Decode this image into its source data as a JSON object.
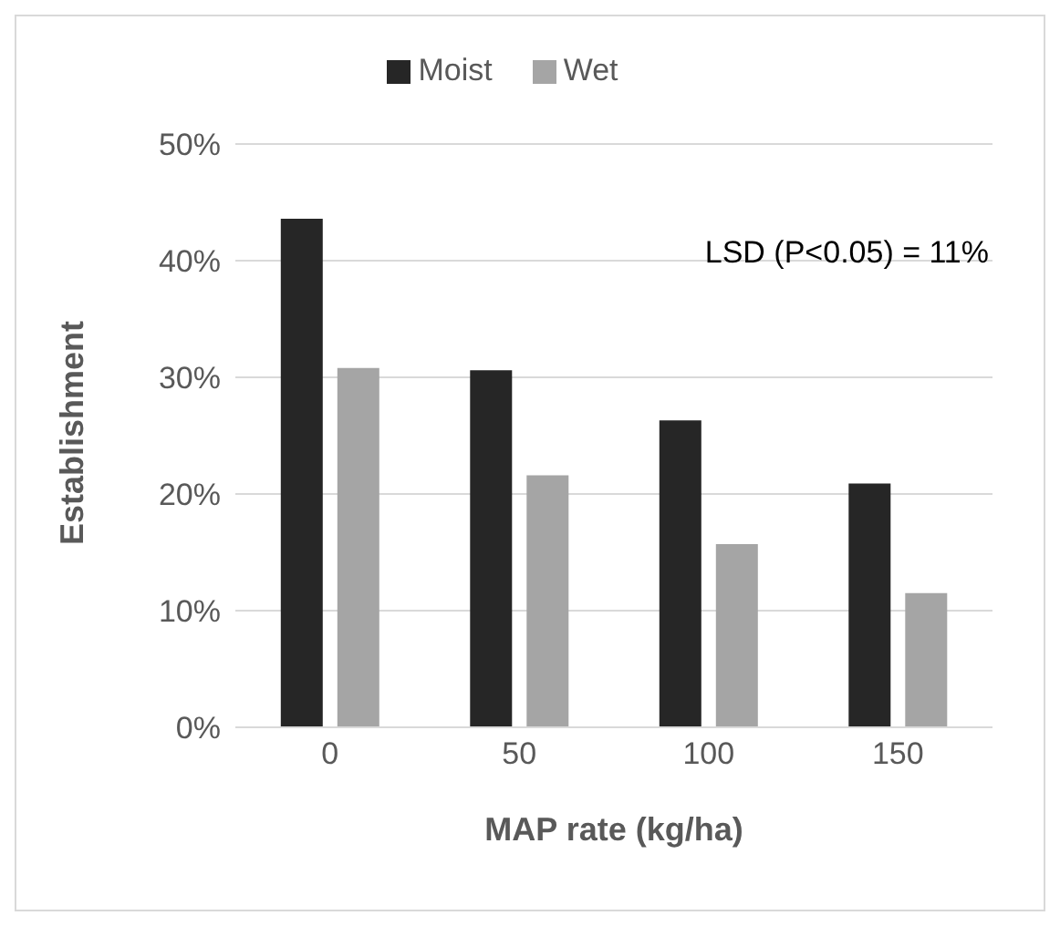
{
  "chart_data": {
    "type": "bar",
    "xlabel": "MAP rate (kg/ha)",
    "ylabel": "Establishment",
    "categories": [
      "0",
      "50",
      "100",
      "150"
    ],
    "series": [
      {
        "name": "Moist",
        "color": "#262626",
        "values": [
          43.6,
          30.6,
          26.3,
          20.9
        ]
      },
      {
        "name": "Wet",
        "color": "#a5a5a5",
        "values": [
          30.8,
          21.6,
          15.7,
          11.5
        ]
      }
    ],
    "ylim": [
      0,
      50
    ],
    "yticks": [
      {
        "value": 0,
        "label": "0%"
      },
      {
        "value": 10,
        "label": "10%"
      },
      {
        "value": 20,
        "label": "20%"
      },
      {
        "value": 30,
        "label": "30%"
      },
      {
        "value": 40,
        "label": "40%"
      },
      {
        "value": 50,
        "label": "50%"
      }
    ],
    "grid": "y",
    "legend": "top",
    "annotations": [
      "LSD (P<0.05) = 11%"
    ]
  }
}
